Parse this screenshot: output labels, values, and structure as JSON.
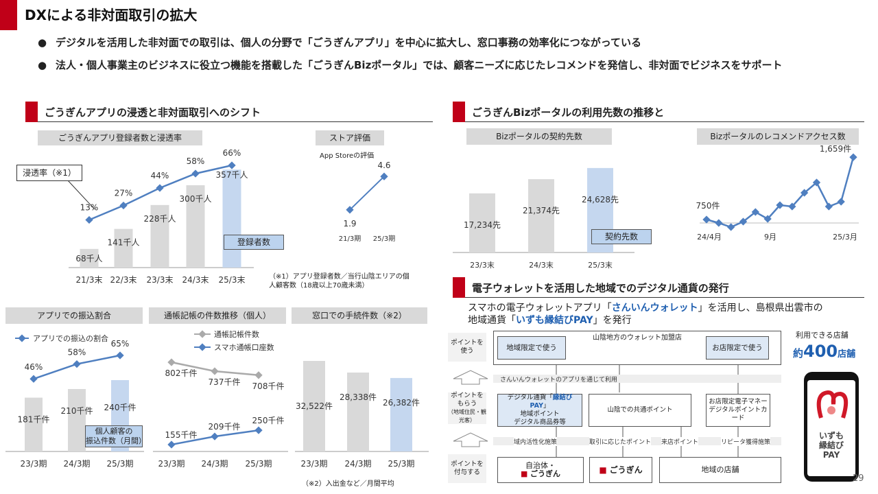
{
  "page": {
    "title": "DXによる非対面取引の拡大",
    "bullets": [
      "デジタルを活用した非対面での取引は、個人の分野で「ごうぎんアプリ」を中心に拡大し、窓口事務の効率化につながっている",
      "法人・個人事業主のビジネスに役立つ機能を搭載した「ごうぎんBizポータル」では、顧客ニーズに応じたレコメンドを発信し、非対面でビジネスをサポート"
    ],
    "page_number": "29",
    "bullet_dot": "●"
  },
  "sections": {
    "app": "ごうぎんアプリの浸透と非対面取引へのシフト",
    "biz": "ごうぎんBizポータルの利用先数の推移と",
    "wallet": "電子ウォレットを活用した地域でのデジタル通貨の発行"
  },
  "chart_data": [
    {
      "type": "bar",
      "title": "ごうぎんアプリ登録者数と浸透率",
      "categories": [
        "21/3末",
        "22/3末",
        "23/3末",
        "24/3末",
        "25/3末"
      ],
      "series": [
        {
          "name": "登録者数",
          "values": [
            68,
            141,
            228,
            300,
            357
          ],
          "labels": [
            "68千人",
            "141千人",
            "228千人",
            "300千人",
            "357千人"
          ]
        },
        {
          "name": "浸透率（※1）",
          "type": "line",
          "values": [
            13,
            27,
            44,
            58,
            66
          ],
          "labels": [
            "13%",
            "27%",
            "44%",
            "58%",
            "66%"
          ]
        }
      ],
      "annotation": "（※1）アプリ登録者数／当行山陰エリアの個人顧客数（18歳以上70歳未満）",
      "colors": {
        "bar": "#d9d9d9",
        "highlight": "#c5d7ef",
        "line": "#4f7fc0"
      }
    },
    {
      "type": "line",
      "title": "ストア評価",
      "subtitle": "App Storeの評価",
      "categories": [
        "21/3期",
        "25/3期"
      ],
      "values": [
        1.9,
        4.6
      ],
      "labels": [
        "1.9",
        "4.6"
      ]
    },
    {
      "type": "bar",
      "title": "Bizポータルの契約先数",
      "categories": [
        "23/3末",
        "24/3末",
        "25/3末"
      ],
      "values": [
        17234,
        21374,
        24628
      ],
      "labels": [
        "17,234先",
        "21,374先",
        "24,628先"
      ],
      "legend": "契約先数"
    },
    {
      "type": "line",
      "title": "Bizポータルのレコメンドアクセス数",
      "x_ticks": [
        "24/4月",
        "9月",
        "25/3月"
      ],
      "values": [
        750,
        700,
        640,
        720,
        860,
        760,
        960,
        940,
        1140,
        1290,
        940,
        1010,
        1659
      ],
      "start_label": "750件",
      "end_label": "1,659件"
    },
    {
      "type": "bar",
      "title": "アプリでの振込割合",
      "categories": [
        "23/3期",
        "24/3期",
        "25/3期"
      ],
      "series": [
        {
          "name": "個人顧客の振込件数（月間）",
          "values": [
            181,
            210,
            240
          ],
          "labels": [
            "181千件",
            "210千件",
            "240千件"
          ]
        },
        {
          "name": "アプリでの振込の割合",
          "type": "line",
          "values": [
            46,
            58,
            65
          ],
          "labels": [
            "46%",
            "58%",
            "65%"
          ]
        }
      ],
      "legend_bar": "個人顧客の\n振込件数（月間）"
    },
    {
      "type": "line",
      "title": "通帳記帳の件数推移（個人）",
      "categories": [
        "23/3期",
        "24/3期",
        "25/3期"
      ],
      "series": [
        {
          "name": "通帳記帳件数",
          "values": [
            802,
            737,
            708
          ],
          "labels": [
            "802千件",
            "737千件",
            "708千件"
          ]
        },
        {
          "name": "スマホ通帳口座数",
          "values": [
            155,
            209,
            250
          ],
          "labels": [
            "155千件",
            "209千件",
            "250千件"
          ]
        }
      ]
    },
    {
      "type": "bar",
      "title": "窓口での手続件数（※2）",
      "categories": [
        "23/3期",
        "24/3期",
        "25/3期"
      ],
      "values": [
        32522,
        28338,
        26382
      ],
      "labels": [
        "32,522件",
        "28,338件",
        "26,382件"
      ],
      "annotation": "（※2）入出金など／月間平均"
    }
  ],
  "wallet": {
    "desc_1": "スマホの電子ウォレットアプリ「",
    "app_name": "さんいんウォレット",
    "desc_2": "」を活用し、島根県出雲市の",
    "desc_3": "地域通貨「",
    "currency_name": "いずも縁結びPAY",
    "desc_4": "」を発行",
    "row_use": "ポイントを使う",
    "row_get": "ポイントをもらう",
    "row_get_sub": "（地域住民・観光客）",
    "row_give": "ポイントを付与する",
    "merchants_title": "山陰地方のウォレット加盟店",
    "use_local": "地域限定で使う",
    "use_shop": "お店限定で使う",
    "via_app": "さんいんウォレットのアプリを通じて利用",
    "box_digital": "デジタル通貨「",
    "box_digital_name": "縁結びPAY",
    "box_digital_end": "」",
    "box_digital_2": "地域ポイント",
    "box_digital_3": "デジタル商品券等",
    "box_common": "山陰での共通ポイント",
    "box_shop": "お店限定電子マネー",
    "box_shop_2": "デジタルポイントカード",
    "lbl_local": "域内活性化施策",
    "lbl_txn": "取引に応じたポイント",
    "lbl_visit": "来店ポイント",
    "lbl_repeat": "リピータ獲得施策",
    "giver_local": "自治体・",
    "giver_bank": "ごうぎん",
    "giver_bank2": "ごうぎん",
    "giver_shops": "地域の店舗",
    "stores_label": "利用できる店舗",
    "stores_prefix": "約",
    "stores_count": "400",
    "stores_suffix": "店舗",
    "logo_text_1": "いずも",
    "logo_text_2": "縁結び",
    "logo_text_3": "PAY"
  }
}
